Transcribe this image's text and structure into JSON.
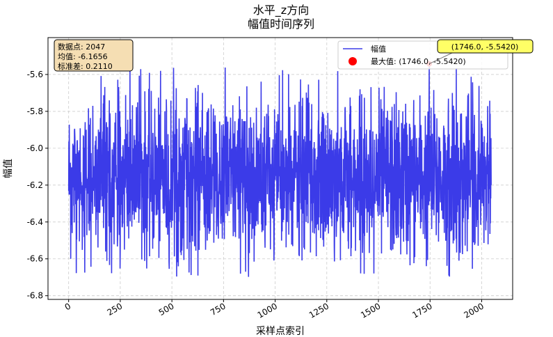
{
  "chart_data": {
    "type": "line",
    "title_line1": "水平_z方向",
    "title_line2": "幅值时间序列",
    "xlabel": "采样点索引",
    "ylabel": "幅值",
    "xlim": [
      -100,
      2150
    ],
    "ylim": [
      -6.82,
      -5.4
    ],
    "xticks": [
      0,
      250,
      500,
      750,
      1000,
      1250,
      1500,
      1750,
      2000
    ],
    "xtick_labels": [
      "0",
      "250",
      "500",
      "750",
      "1000",
      "1250",
      "1500",
      "1750",
      "2000"
    ],
    "yticks": [
      -6.8,
      -6.6,
      -6.4,
      -6.2,
      -6.0,
      -5.8,
      -5.6
    ],
    "ytick_labels": [
      "-6.8",
      "-6.6",
      "-6.4",
      "-6.2",
      "-6.0",
      "-5.8",
      "-5.6"
    ],
    "grid": true,
    "legend_position": "top-right",
    "series": [
      {
        "name": "幅值",
        "color": "#3b3be8",
        "n_points": 2047,
        "mean": -6.1656,
        "std": 0.211,
        "x_start": 0,
        "x_end": 2046,
        "y_min": -6.7,
        "y_max": -5.542
      }
    ],
    "max_marker": {
      "label": "最大值: (1746.0, -5.5420)",
      "x": 1746.0,
      "y": -5.542,
      "color": "#ff0000"
    },
    "annotation": {
      "text": "(1746.0, -5.5420)",
      "bg_color": "#ffff66"
    },
    "stats_box": {
      "lines": [
        "数据点: 2047",
        "均值: -6.1656",
        "标准差: 0.2110"
      ],
      "bg_color": "#f5deb3"
    }
  }
}
